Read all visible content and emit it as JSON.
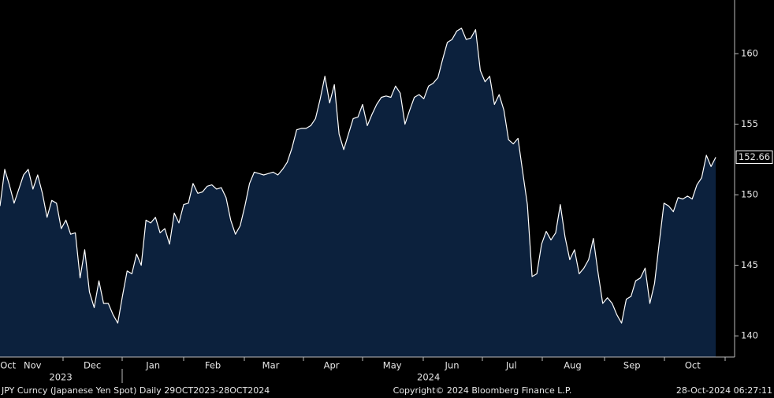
{
  "chart_data": {
    "type": "area",
    "color": "#0c213d",
    "line_color": "#ffffff",
    "values": [
      149.2,
      151.8,
      150.7,
      149.4,
      150.4,
      151.4,
      151.8,
      150.4,
      151.4,
      150.1,
      148.4,
      149.6,
      149.4,
      147.6,
      148.2,
      147.2,
      147.3,
      144.1,
      146.1,
      143.1,
      142.0,
      143.9,
      142.3,
      142.3,
      141.5,
      140.9,
      142.8,
      144.6,
      144.4,
      145.8,
      145.0,
      148.2,
      148.0,
      148.4,
      147.3,
      147.6,
      146.5,
      148.7,
      148.0,
      149.3,
      149.4,
      150.8,
      150.1,
      150.2,
      150.6,
      150.7,
      150.4,
      150.5,
      149.8,
      148.2,
      147.2,
      147.8,
      149.2,
      150.8,
      151.6,
      151.5,
      151.4,
      151.5,
      151.6,
      151.4,
      151.8,
      152.3,
      153.3,
      154.6,
      154.7,
      154.7,
      154.9,
      155.4,
      156.8,
      158.4,
      156.5,
      157.8,
      154.3,
      153.2,
      154.3,
      155.4,
      155.5,
      156.4,
      154.9,
      155.7,
      156.4,
      156.9,
      157.0,
      156.9,
      157.7,
      157.2,
      155.0,
      156.0,
      156.9,
      157.1,
      156.8,
      157.7,
      157.9,
      158.3,
      159.6,
      160.8,
      161.0,
      161.6,
      161.8,
      161.0,
      161.1,
      161.7,
      158.8,
      158.0,
      158.4,
      156.4,
      157.1,
      156.0,
      153.9,
      153.6,
      154.0,
      151.6,
      149.3,
      144.2,
      144.4,
      146.5,
      147.4,
      146.8,
      147.3,
      149.3,
      147.0,
      145.4,
      146.1,
      144.4,
      144.8,
      145.4,
      146.9,
      144.5,
      142.3,
      142.7,
      142.3,
      141.5,
      140.9,
      142.6,
      142.8,
      143.9,
      144.1,
      144.8,
      142.3,
      143.7,
      146.6,
      149.4,
      149.2,
      148.8,
      149.8,
      149.7,
      149.9,
      149.7,
      150.7,
      151.2,
      152.8,
      152.0,
      152.66
    ],
    "xlim": [
      0,
      156
    ],
    "xticks": [
      {
        "value": 1.7,
        "label": "Oct"
      },
      {
        "value": 6.9,
        "label": "Nov"
      },
      {
        "value": 19.6,
        "label": "Dec"
      },
      {
        "value": 32.5,
        "label": "Jan"
      },
      {
        "value": 45.2,
        "label": "Feb"
      },
      {
        "value": 57.5,
        "label": "Mar"
      },
      {
        "value": 70.4,
        "label": "Apr"
      },
      {
        "value": 83.3,
        "label": "May"
      },
      {
        "value": 96,
        "label": "Jun"
      },
      {
        "value": 108.6,
        "label": "Jul"
      },
      {
        "value": 121.6,
        "label": "Aug"
      },
      {
        "value": 134.2,
        "label": "Sep"
      },
      {
        "value": 147.1,
        "label": "Oct"
      }
    ],
    "years": [
      {
        "value": 12.9,
        "label": "2023"
      },
      {
        "value": 91,
        "label": "2024"
      }
    ],
    "ylim": [
      138.5,
      163.8
    ],
    "yticks": [
      140,
      145,
      150,
      155,
      160
    ],
    "footer": {
      "left": "JPY Curncy (Japanese Yen Spot)  Daily 29OCT2023-28OCT2024",
      "center": "Copyright© 2024 Bloomberg Finance L.P.",
      "right": "28-Oct-2024 06:27:11"
    }
  }
}
